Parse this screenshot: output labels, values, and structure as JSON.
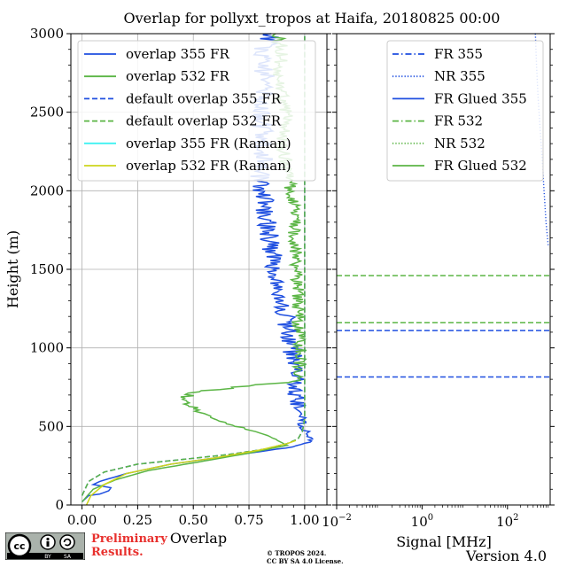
{
  "title": "Overlap for pollyxt_tropos at Haifa, 20180825 00:00",
  "footer": {
    "preliminary_line1": "Preliminary",
    "preliminary_line2": "Results.",
    "copyright_line1": "© TROPOS 2024.",
    "copyright_line2": "CC BY SA 4.0 License.",
    "version": "Version 4.0",
    "license_logo": "cc-by-sa-logo"
  },
  "colors": {
    "blue": "#1f4fe0",
    "green": "#5bb545",
    "cyan": "#3ef2f2",
    "yellow": "#cdd41b",
    "grid": "#b0b0b0"
  },
  "chart_data": [
    {
      "type": "line",
      "xlabel": "Overlap",
      "ylabel": "Height (m)",
      "xlim": [
        -0.05,
        1.1
      ],
      "ylim": [
        0,
        3000
      ],
      "x_ticks": [
        0.0,
        0.25,
        0.5,
        0.75,
        1.0
      ],
      "x_tick_labels": [
        "0.00",
        "0.25",
        "0.50",
        "0.75",
        "1.00"
      ],
      "y_ticks": [
        0,
        500,
        1000,
        1500,
        2000,
        2500,
        3000
      ],
      "y_tick_labels": [
        "0",
        "500",
        "1000",
        "1500",
        "2000",
        "2500",
        "3000"
      ],
      "grid": true,
      "legend_position": "top-right",
      "series": [
        {
          "name": "overlap 355 FR",
          "color": "#1f4fe0",
          "style": "solid",
          "jitter": 0.045,
          "points": [
            [
              0.0,
              20
            ],
            [
              0.03,
              60
            ],
            [
              0.08,
              70
            ],
            [
              0.12,
              90
            ],
            [
              0.13,
              110
            ],
            [
              0.09,
              120
            ],
            [
              0.05,
              130
            ],
            [
              0.08,
              150
            ],
            [
              0.2,
              200
            ],
            [
              0.4,
              260
            ],
            [
              0.6,
              300
            ],
            [
              0.8,
              340
            ],
            [
              0.95,
              370
            ],
            [
              1.02,
              400
            ],
            [
              1.03,
              420
            ],
            [
              0.99,
              500
            ],
            [
              0.97,
              650
            ],
            [
              0.96,
              800
            ],
            [
              0.95,
              950
            ],
            [
              0.93,
              1100
            ],
            [
              0.9,
              1300
            ],
            [
              0.87,
              1500
            ],
            [
              0.84,
              1700
            ],
            [
              0.82,
              1900
            ],
            [
              0.8,
              2100
            ],
            [
              0.82,
              2300
            ],
            [
              0.8,
              2500
            ],
            [
              0.83,
              2700
            ],
            [
              0.8,
              2850
            ],
            [
              0.85,
              3000
            ]
          ]
        },
        {
          "name": "overlap 532 FR",
          "color": "#5bb545",
          "style": "solid",
          "jitter": 0.03,
          "points": [
            [
              0.0,
              20
            ],
            [
              0.05,
              100
            ],
            [
              0.15,
              160
            ],
            [
              0.3,
              220
            ],
            [
              0.55,
              280
            ],
            [
              0.75,
              330
            ],
            [
              0.92,
              380
            ],
            [
              0.88,
              410
            ],
            [
              0.82,
              450
            ],
            [
              0.7,
              500
            ],
            [
              0.58,
              550
            ],
            [
              0.5,
              620
            ],
            [
              0.45,
              680
            ],
            [
              0.52,
              720
            ],
            [
              0.7,
              750
            ],
            [
              0.9,
              780
            ],
            [
              0.98,
              800
            ],
            [
              0.98,
              1000
            ],
            [
              0.97,
              1300
            ],
            [
              0.96,
              1600
            ],
            [
              0.95,
              1900
            ],
            [
              0.93,
              2100
            ],
            [
              0.9,
              2300
            ],
            [
              0.92,
              2500
            ],
            [
              0.88,
              2700
            ],
            [
              0.9,
              2900
            ],
            [
              0.87,
              3000
            ]
          ]
        },
        {
          "name": "default overlap 355 FR",
          "color": "#1f4fe0",
          "style": "dashed",
          "jitter": 0,
          "points": [
            [
              0.0,
              60
            ],
            [
              0.03,
              150
            ],
            [
              0.1,
              210
            ],
            [
              0.25,
              260
            ],
            [
              0.45,
              290
            ],
            [
              0.65,
              320
            ],
            [
              0.82,
              355
            ],
            [
              0.92,
              390
            ],
            [
              0.97,
              420
            ],
            [
              0.99,
              470
            ],
            [
              1.0,
              550
            ],
            [
              1.0,
              3000
            ]
          ]
        },
        {
          "name": "default overlap 532 FR",
          "color": "#5bb545",
          "style": "dashed",
          "jitter": 0,
          "points": [
            [
              0.0,
              60
            ],
            [
              0.03,
              150
            ],
            [
              0.1,
              210
            ],
            [
              0.25,
              260
            ],
            [
              0.45,
              290
            ],
            [
              0.65,
              320
            ],
            [
              0.82,
              355
            ],
            [
              0.92,
              390
            ],
            [
              0.97,
              420
            ],
            [
              0.99,
              470
            ],
            [
              1.0,
              550
            ],
            [
              1.0,
              3000
            ]
          ]
        },
        {
          "name": "overlap 355 FR (Raman)",
          "color": "#3ef2f2",
          "style": "solid",
          "jitter": 0,
          "points": []
        },
        {
          "name": "overlap 532 FR (Raman)",
          "color": "#cdd41b",
          "style": "solid",
          "jitter": 0,
          "points": [
            [
              0.02,
              0
            ],
            [
              0.04,
              60
            ],
            [
              0.1,
              130
            ],
            [
              0.2,
              200
            ],
            [
              0.4,
              260
            ],
            [
              0.6,
              300
            ],
            [
              0.8,
              350
            ],
            [
              0.92,
              390
            ],
            [
              0.96,
              410
            ]
          ]
        }
      ]
    },
    {
      "type": "line",
      "xlabel": "Signal [MHz]",
      "x_scale": "log",
      "xlim": [
        0.01,
        1000
      ],
      "ylim": [
        0,
        3000
      ],
      "x_ticks": [
        0.01,
        1,
        100
      ],
      "x_tick_labels": [
        "10",
        "10",
        "10"
      ],
      "x_tick_exponents": [
        "−2",
        "0",
        "2"
      ],
      "grid": false,
      "legend_position": "top-right",
      "series": [
        {
          "name": "FR 355",
          "color": "#1f4fe0",
          "style": "dashdot",
          "points": []
        },
        {
          "name": "NR 355",
          "color": "#1f4fe0",
          "style": "dotted",
          "points": [
            [
              450,
              3000
            ],
            [
              480,
              2800
            ],
            [
              520,
              2600
            ],
            [
              580,
              2400
            ],
            [
              650,
              2200
            ],
            [
              720,
              2000
            ],
            [
              800,
              1800
            ],
            [
              900,
              1650
            ]
          ]
        },
        {
          "name": "FR Glued 355",
          "color": "#1f4fe0",
          "style": "solid",
          "points": []
        },
        {
          "name": "FR 532",
          "color": "#5bb545",
          "style": "dashdot",
          "points": []
        },
        {
          "name": "NR 532",
          "color": "#5bb545",
          "style": "dotted",
          "points": []
        },
        {
          "name": "FR Glued 532",
          "color": "#5bb545",
          "style": "solid",
          "points": []
        }
      ],
      "hlines": [
        {
          "y": 1460,
          "color": "#5bb545",
          "style": "dashed"
        },
        {
          "y": 1160,
          "color": "#5bb545",
          "style": "dashed"
        },
        {
          "y": 1110,
          "color": "#1f4fe0",
          "style": "dashed"
        },
        {
          "y": 815,
          "color": "#1f4fe0",
          "style": "dashed"
        }
      ]
    }
  ]
}
